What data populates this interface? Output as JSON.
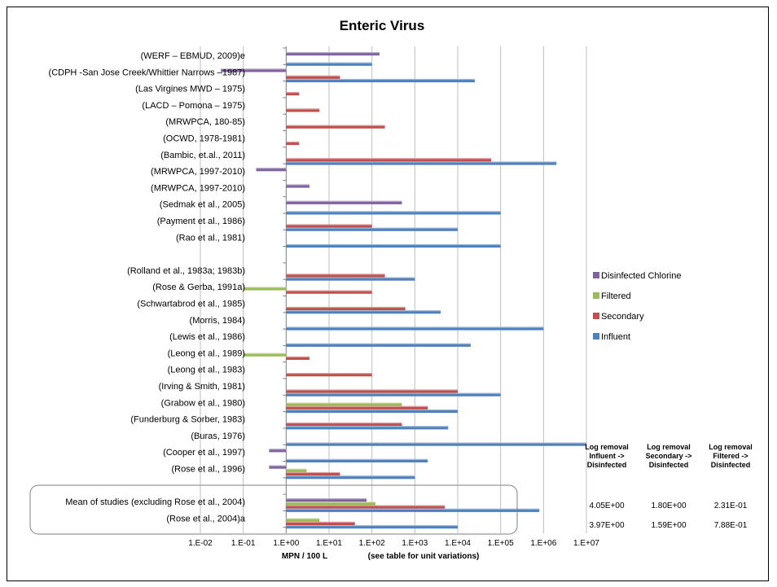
{
  "chart_data": {
    "type": "bar",
    "orientation": "horizontal",
    "title": "Enteric Virus",
    "xlabel": "MPN / 100 L",
    "xlabel_note": "(see table for unit variations)",
    "xscale": "log",
    "xlim": [
      0.01,
      10000000
    ],
    "x_ticks": [
      "1.E-02",
      "1.E-01",
      "1.E+00",
      "1.E+01",
      "1.E+02",
      "1.E+03",
      "1.E+04",
      "1.E+05",
      "1.E+06",
      "1.E+07"
    ],
    "grid": "vertical",
    "legend_position": "right",
    "series": [
      {
        "name": "Disinfected Chlorine",
        "color": "#8064a2"
      },
      {
        "name": "Filtered",
        "color": "#9bbb59"
      },
      {
        "name": "Secondary",
        "color": "#c0504d"
      },
      {
        "name": "Influent",
        "color": "#4f81bd"
      }
    ],
    "categories": [
      "(WERF – EBMUD, 2009)e",
      "(CDPH -San Jose Creek/Whittier Narrows –1987)",
      "(Las Virgines MWD – 1975)",
      "(LACD – Pomona – 1975)",
      "(MRWPCA, 180-85)",
      "(OCWD, 1978-1981)",
      "(Bambic, et.al., 2011)",
      "(MRWPCA, 1997-2010)",
      "(MRWPCA, 1997-2010)",
      "(Sedmak et al., 2005)",
      "(Payment et al., 1986)",
      "(Rao et al., 1981)",
      "",
      "(Rolland et al., 1983a; 1983b)",
      "(Rose & Gerba, 1991a)",
      "(Schwartabrod et al., 1985)",
      "(Morris, 1984)",
      "(Lewis et al., 1986)",
      "(Leong et al., 1989)",
      "(Leong et al., 1983)",
      "(Irving & Smith, 1981)",
      "(Grabow et al., 1980)",
      "(Funderburg & Sorber, 1983)",
      "(Buras, 1976)",
      "(Cooper et al., 1997)",
      "(Rose et al., 1996)",
      "",
      "Mean of studies (excluding Rose et al., 2004)",
      "(Rose et al., 2004)a"
    ],
    "values": {
      "Disinfected Chlorine": [
        150,
        0.03,
        null,
        null,
        null,
        null,
        null,
        0.2,
        3.5,
        500,
        null,
        null,
        null,
        null,
        null,
        null,
        null,
        null,
        null,
        null,
        null,
        null,
        null,
        null,
        0.4,
        0.4,
        null,
        75,
        null
      ],
      "Filtered": [
        null,
        null,
        null,
        null,
        null,
        null,
        null,
        null,
        null,
        null,
        null,
        null,
        null,
        null,
        0.1,
        null,
        null,
        null,
        0.1,
        null,
        null,
        500,
        null,
        null,
        null,
        3,
        null,
        120,
        6
      ],
      "Secondary": [
        null,
        18,
        2,
        6,
        200,
        2,
        60000,
        null,
        null,
        null,
        100,
        null,
        null,
        200,
        100,
        600,
        null,
        null,
        3.5,
        100,
        10000,
        2000,
        500,
        null,
        null,
        18,
        null,
        5000,
        40
      ],
      "Influent": [
        100,
        25000,
        null,
        null,
        null,
        null,
        2000000,
        null,
        null,
        100000,
        10000,
        100000,
        null,
        1000,
        null,
        4000,
        1000000,
        20000,
        null,
        null,
        100000,
        10000,
        6000,
        10000000,
        2000,
        1000,
        null,
        800000,
        10000
      ]
    },
    "table": {
      "headers": [
        [
          "Log removal",
          "Influent ->",
          "Disinfected"
        ],
        [
          "Log removal",
          "Secondary ->",
          "Disinfected"
        ],
        [
          "Log removal",
          "Filtered ->",
          "Disinfected"
        ]
      ],
      "rows": [
        {
          "label": "Mean of studies (excluding Rose et al., 2004)",
          "values": [
            "4.05E+00",
            "1.80E+00",
            "2.31E-01"
          ]
        },
        {
          "label": "(Rose et al., 2004)a",
          "values": [
            "3.97E+00",
            "1.59E+00",
            "7.88E-01"
          ]
        }
      ]
    }
  }
}
